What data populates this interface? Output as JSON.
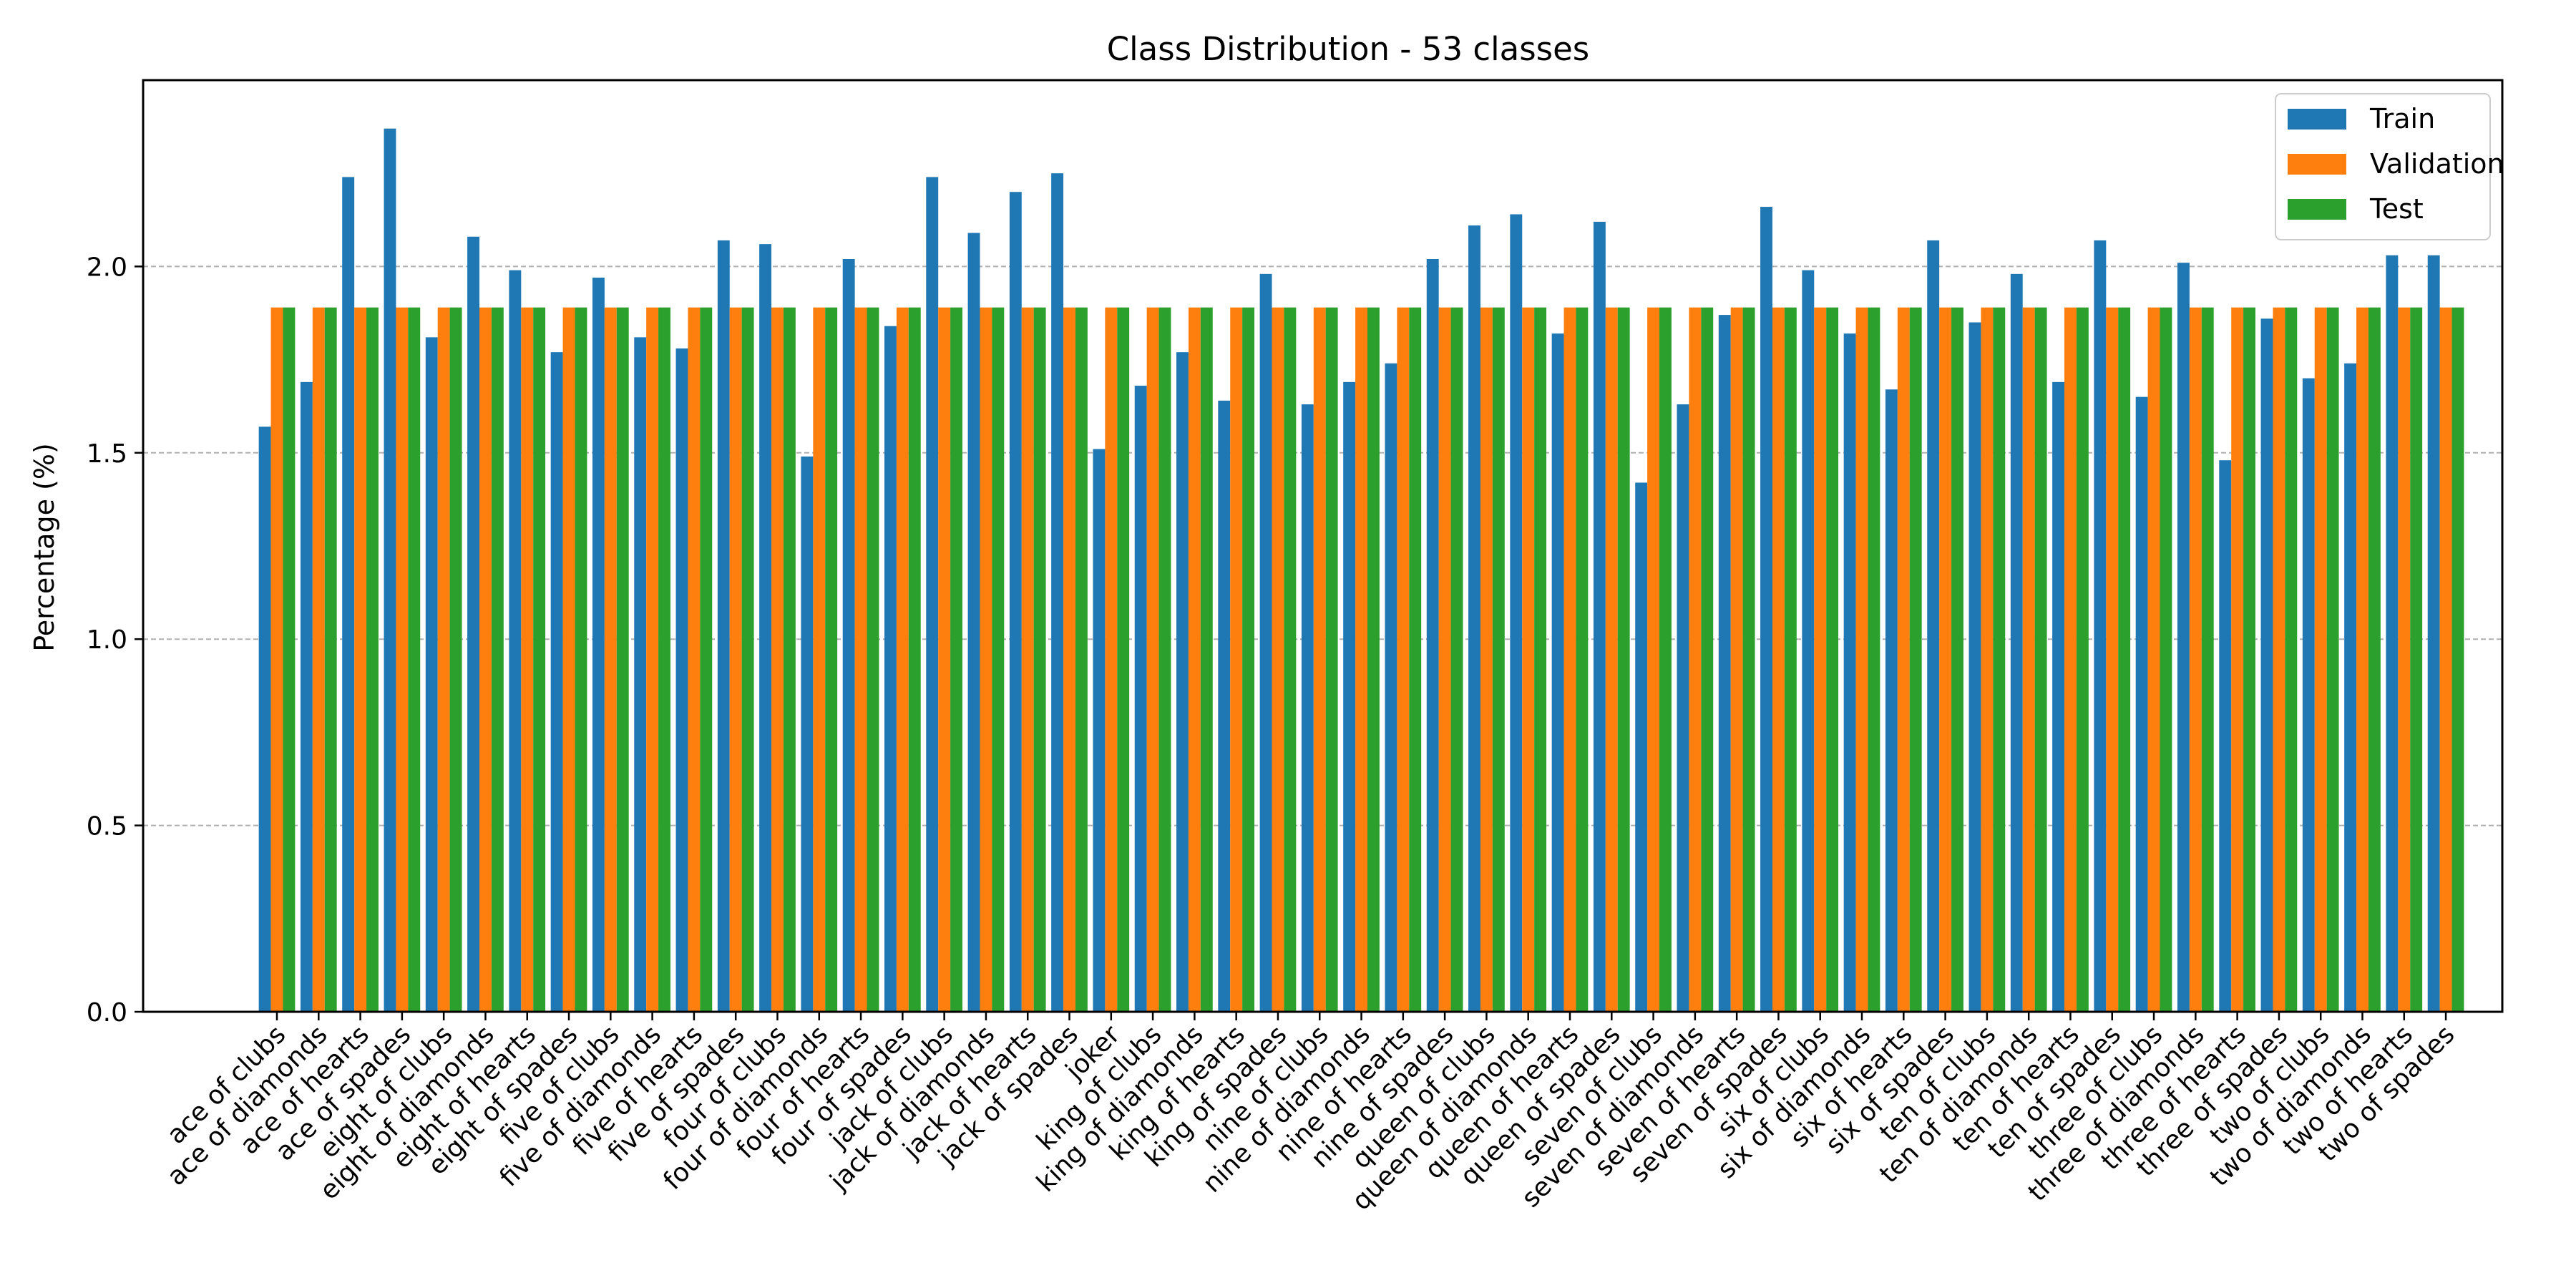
{
  "chart_data": {
    "type": "bar",
    "title": "Class Distribution - 53 classes",
    "xlabel": "",
    "ylabel": "Percentage (%)",
    "ylim": [
      0,
      2.5
    ],
    "yticks": [
      "0.0",
      "0.5",
      "1.0",
      "1.5",
      "2.0"
    ],
    "grid": "y-dashed",
    "legend_position": "top-right",
    "categories": [
      "ace of clubs",
      "ace of diamonds",
      "ace of hearts",
      "ace of spades",
      "eight of clubs",
      "eight of diamonds",
      "eight of hearts",
      "eight of spades",
      "five of clubs",
      "five of diamonds",
      "five of hearts",
      "five of spades",
      "four of clubs",
      "four of diamonds",
      "four of hearts",
      "four of spades",
      "jack of clubs",
      "jack of diamonds",
      "jack of hearts",
      "jack of spades",
      "joker",
      "king of clubs",
      "king of diamonds",
      "king of hearts",
      "king of spades",
      "nine of clubs",
      "nine of diamonds",
      "nine of hearts",
      "nine of spades",
      "queen of clubs",
      "queen of diamonds",
      "queen of hearts",
      "queen of spades",
      "seven of clubs",
      "seven of diamonds",
      "seven of hearts",
      "seven of spades",
      "six of clubs",
      "six of diamonds",
      "six of hearts",
      "six of spades",
      "ten of clubs",
      "ten of diamonds",
      "ten of hearts",
      "ten of spades",
      "three of clubs",
      "three of diamonds",
      "three of hearts",
      "three of spades",
      "two of clubs",
      "two of diamonds",
      "two of hearts",
      "two of spades"
    ],
    "series": [
      {
        "name": "Train",
        "color": "#1f77b4",
        "values": [
          1.57,
          1.69,
          2.24,
          2.37,
          1.81,
          2.08,
          1.99,
          1.77,
          1.97,
          1.81,
          1.78,
          2.07,
          2.06,
          1.49,
          2.02,
          1.84,
          2.24,
          2.09,
          2.2,
          2.25,
          1.51,
          1.68,
          1.77,
          1.64,
          1.98,
          1.63,
          1.69,
          1.74,
          2.02,
          2.11,
          2.14,
          1.82,
          2.12,
          1.42,
          1.63,
          1.87,
          2.16,
          1.99,
          1.82,
          1.67,
          2.07,
          1.85,
          1.98,
          1.69,
          2.07,
          1.65,
          2.01,
          1.48,
          1.86,
          1.7,
          1.74,
          2.03,
          2.03
        ]
      },
      {
        "name": "Validation",
        "color": "#ff7f0e",
        "values": [
          1.89,
          1.89,
          1.89,
          1.89,
          1.89,
          1.89,
          1.89,
          1.89,
          1.89,
          1.89,
          1.89,
          1.89,
          1.89,
          1.89,
          1.89,
          1.89,
          1.89,
          1.89,
          1.89,
          1.89,
          1.89,
          1.89,
          1.89,
          1.89,
          1.89,
          1.89,
          1.89,
          1.89,
          1.89,
          1.89,
          1.89,
          1.89,
          1.89,
          1.89,
          1.89,
          1.89,
          1.89,
          1.89,
          1.89,
          1.89,
          1.89,
          1.89,
          1.89,
          1.89,
          1.89,
          1.89,
          1.89,
          1.89,
          1.89,
          1.89,
          1.89,
          1.89,
          1.89
        ]
      },
      {
        "name": "Test",
        "color": "#2ca02c",
        "values": [
          1.89,
          1.89,
          1.89,
          1.89,
          1.89,
          1.89,
          1.89,
          1.89,
          1.89,
          1.89,
          1.89,
          1.89,
          1.89,
          1.89,
          1.89,
          1.89,
          1.89,
          1.89,
          1.89,
          1.89,
          1.89,
          1.89,
          1.89,
          1.89,
          1.89,
          1.89,
          1.89,
          1.89,
          1.89,
          1.89,
          1.89,
          1.89,
          1.89,
          1.89,
          1.89,
          1.89,
          1.89,
          1.89,
          1.89,
          1.89,
          1.89,
          1.89,
          1.89,
          1.89,
          1.89,
          1.89,
          1.89,
          1.89,
          1.89,
          1.89,
          1.89,
          1.89,
          1.89
        ]
      }
    ]
  }
}
